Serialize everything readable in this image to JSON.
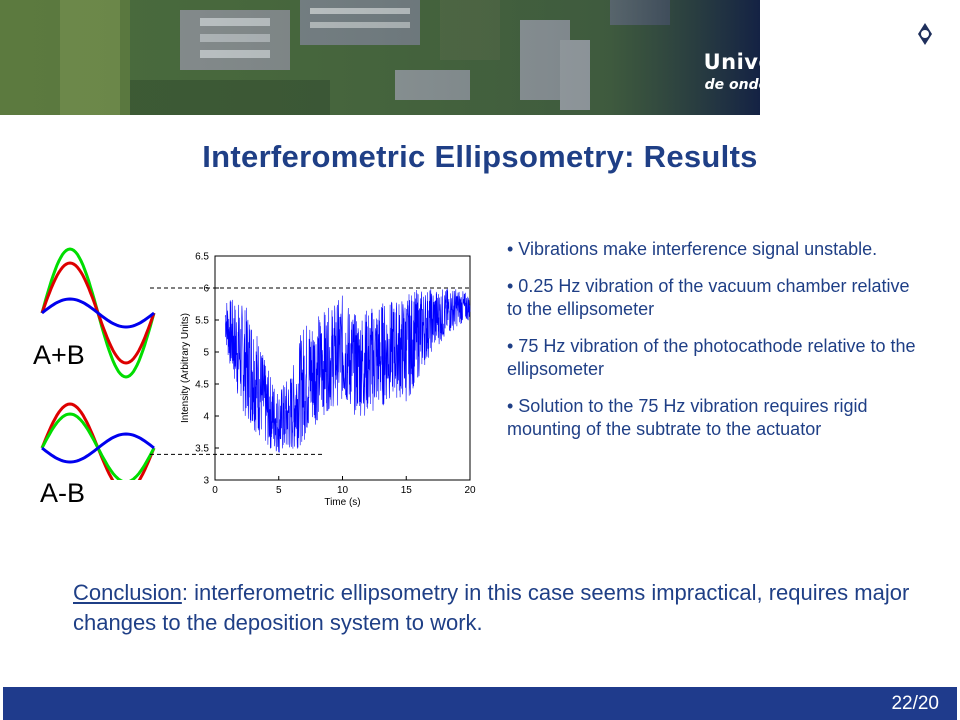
{
  "header": {
    "university_name": "Universiteit Twente",
    "tagline": "de ondernemende universiteit"
  },
  "slide": {
    "title": "Interferometric Ellipsometry: Results",
    "wave_labels": {
      "sum": "A+B",
      "difference": "A-B"
    },
    "bullets": [
      "• Vibrations make interference signal unstable.",
      "• 0.25 Hz vibration of the vacuum chamber relative to the ellipsometer",
      "• 75 Hz vibration of the photocathode relative to the ellipsometer",
      "• Solution to the 75 Hz vibration requires rigid mounting of the subtrate to the actuator"
    ],
    "conclusion": {
      "lead": "Conclusion",
      "text": ": interferometric ellipsometry in this case seems impractical, requires major changes to the deposition system to work."
    }
  },
  "chart_data": {
    "type": "line",
    "xlabel": "Time (s)",
    "ylabel": "Intensity (Arbitrary Units)",
    "xlim": [
      0,
      20
    ],
    "ylim": [
      3,
      6.5
    ],
    "x_ticks": [
      "0",
      "5",
      "10",
      "15",
      "20"
    ],
    "y_ticks": [
      "3",
      "3.5",
      "4",
      "4.5",
      "5",
      "5.5",
      "6",
      "6.5"
    ],
    "reference_lines": [
      6.0,
      3.4
    ],
    "series_color": "#0000ff",
    "envelope": {
      "x": [
        0.8,
        1,
        2,
        3,
        4,
        5,
        6,
        7,
        8,
        9,
        10,
        11,
        12,
        13,
        14,
        15,
        16,
        17,
        18,
        19,
        20
      ],
      "min": [
        5.2,
        4.9,
        4.1,
        3.8,
        3.5,
        3.4,
        3.4,
        3.6,
        3.9,
        4.1,
        4.2,
        4.0,
        4.0,
        4.1,
        4.3,
        4.2,
        4.6,
        5.0,
        5.2,
        5.4,
        5.5
      ],
      "max": [
        5.9,
        5.85,
        5.8,
        5.6,
        4.8,
        4.4,
        4.7,
        5.5,
        5.6,
        5.7,
        5.9,
        5.6,
        5.7,
        5.8,
        5.8,
        5.9,
        6.0,
        6.0,
        6.0,
        6.0,
        5.9
      ]
    }
  },
  "page": {
    "number": "22/20"
  },
  "colors": {
    "title": "#1f3f86",
    "footer": "#1f3b8c",
    "wave_a": "#00dd00",
    "wave_b": "#dd0000",
    "wave_c": "#0000ee"
  }
}
